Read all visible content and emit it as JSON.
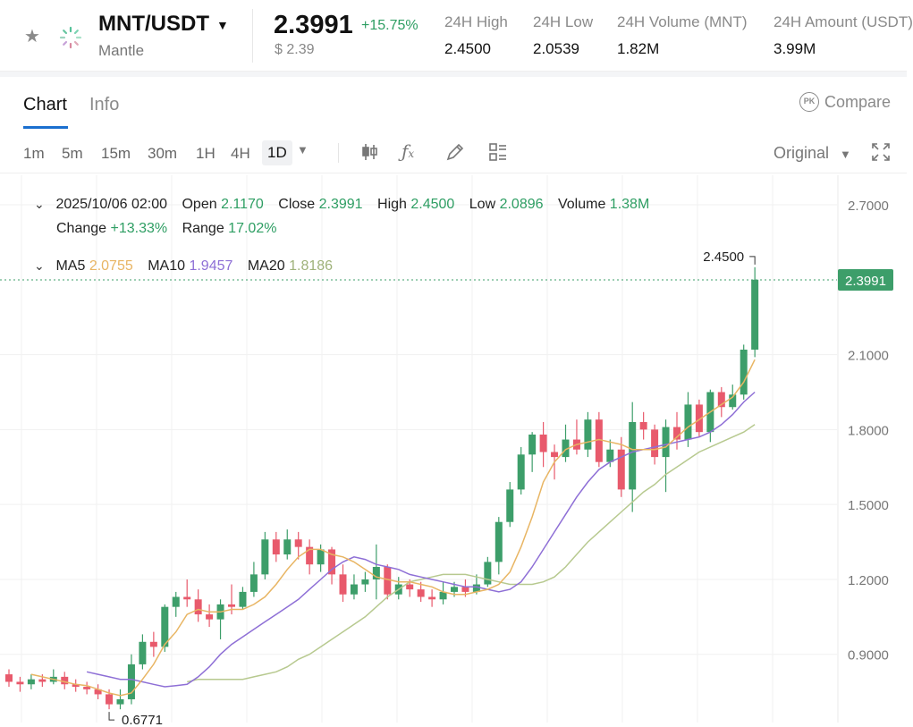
{
  "ticker": {
    "symbol": "MNT/USDT",
    "name": "Mantle",
    "price": "2.3991",
    "change": "+15.75%",
    "usd_price": "$ 2.39",
    "stats": [
      {
        "label": "24H High",
        "value": "2.4500"
      },
      {
        "label": "24H Low",
        "value": "2.0539"
      },
      {
        "label": "24H Volume (MNT)",
        "value": "1.82M"
      },
      {
        "label": "24H Amount (USDT)",
        "value": "3.99M"
      }
    ]
  },
  "tabs": {
    "chart": "Chart",
    "info": "Info",
    "compare": "Compare",
    "compare_badge": "PK"
  },
  "toolbar": {
    "intervals": [
      "1m",
      "5m",
      "15m",
      "30m",
      "1H",
      "4H",
      "1D"
    ],
    "active_interval": "1D",
    "original": "Original"
  },
  "legend": {
    "date": "2025/10/06 02:00",
    "open_label": "Open",
    "open": "2.1170",
    "close_label": "Close",
    "close": "2.3991",
    "high_label": "High",
    "high": "2.4500",
    "low_label": "Low",
    "low": "2.0896",
    "volume_label": "Volume",
    "volume": "1.38M",
    "change_label": "Change",
    "change": "+13.33%",
    "range_label": "Range",
    "range": "17.02%",
    "ma5_label": "MA5",
    "ma5": "2.0755",
    "ma10_label": "MA10",
    "ma10": "1.9457",
    "ma20_label": "MA20",
    "ma20": "1.8186"
  },
  "colors": {
    "up": "#3d9e6a",
    "down": "#e85a6c",
    "ma5": "#e8b563",
    "ma10": "#8e6fd6",
    "ma20": "#b7c98f",
    "price_line": "#3d9e6a"
  },
  "chart_data": {
    "type": "candlestick",
    "y_ticks": [
      "2.7000",
      "2.1000",
      "1.8000",
      "1.5000",
      "1.2000",
      "0.9000"
    ],
    "ylim": [
      0.6,
      2.75
    ],
    "current_price": "2.3991",
    "max_label": "2.4500",
    "min_label": "0.6771",
    "candles": [
      [
        0.82,
        0.79,
        0.84,
        0.77
      ],
      [
        0.79,
        0.78,
        0.81,
        0.75
      ],
      [
        0.78,
        0.8,
        0.82,
        0.76
      ],
      [
        0.8,
        0.79,
        0.82,
        0.77
      ],
      [
        0.79,
        0.81,
        0.84,
        0.78
      ],
      [
        0.81,
        0.78,
        0.83,
        0.76
      ],
      [
        0.78,
        0.77,
        0.8,
        0.75
      ],
      [
        0.77,
        0.76,
        0.79,
        0.74
      ],
      [
        0.76,
        0.74,
        0.78,
        0.72
      ],
      [
        0.74,
        0.7,
        0.76,
        0.68
      ],
      [
        0.7,
        0.72,
        0.76,
        0.68
      ],
      [
        0.72,
        0.86,
        0.9,
        0.7
      ],
      [
        0.86,
        0.95,
        0.98,
        0.84
      ],
      [
        0.95,
        0.93,
        0.99,
        0.89
      ],
      [
        0.93,
        1.09,
        1.1,
        0.91
      ],
      [
        1.09,
        1.13,
        1.15,
        1.05
      ],
      [
        1.13,
        1.12,
        1.2,
        1.09
      ],
      [
        1.12,
        1.06,
        1.16,
        1.03
      ],
      [
        1.06,
        1.04,
        1.1,
        1.01
      ],
      [
        1.04,
        1.1,
        1.12,
        0.96
      ],
      [
        1.1,
        1.09,
        1.18,
        1.06
      ],
      [
        1.09,
        1.15,
        1.17,
        1.08
      ],
      [
        1.15,
        1.22,
        1.27,
        1.13
      ],
      [
        1.22,
        1.36,
        1.39,
        1.2
      ],
      [
        1.36,
        1.3,
        1.39,
        1.27
      ],
      [
        1.3,
        1.36,
        1.4,
        1.28
      ],
      [
        1.36,
        1.33,
        1.39,
        1.28
      ],
      [
        1.33,
        1.26,
        1.36,
        1.22
      ],
      [
        1.26,
        1.32,
        1.34,
        1.23
      ],
      [
        1.32,
        1.22,
        1.33,
        1.18
      ],
      [
        1.22,
        1.14,
        1.26,
        1.11
      ],
      [
        1.14,
        1.18,
        1.22,
        1.12
      ],
      [
        1.18,
        1.2,
        1.23,
        1.15
      ],
      [
        1.2,
        1.25,
        1.34,
        1.12
      ],
      [
        1.25,
        1.14,
        1.26,
        1.12
      ],
      [
        1.14,
        1.18,
        1.21,
        1.12
      ],
      [
        1.18,
        1.16,
        1.2,
        1.13
      ],
      [
        1.16,
        1.13,
        1.19,
        1.11
      ],
      [
        1.13,
        1.12,
        1.16,
        1.09
      ],
      [
        1.12,
        1.15,
        1.19,
        1.1
      ],
      [
        1.15,
        1.17,
        1.19,
        1.13
      ],
      [
        1.17,
        1.15,
        1.2,
        1.13
      ],
      [
        1.15,
        1.18,
        1.22,
        1.14
      ],
      [
        1.18,
        1.27,
        1.29,
        1.17
      ],
      [
        1.27,
        1.43,
        1.45,
        1.22
      ],
      [
        1.43,
        1.56,
        1.59,
        1.41
      ],
      [
        1.56,
        1.7,
        1.73,
        1.54
      ],
      [
        1.7,
        1.78,
        1.79,
        1.63
      ],
      [
        1.78,
        1.71,
        1.83,
        1.65
      ],
      [
        1.71,
        1.69,
        1.74,
        1.6
      ],
      [
        1.69,
        1.76,
        1.82,
        1.67
      ],
      [
        1.76,
        1.72,
        1.84,
        1.7
      ],
      [
        1.72,
        1.84,
        1.87,
        1.69
      ],
      [
        1.84,
        1.67,
        1.87,
        1.65
      ],
      [
        1.67,
        1.72,
        1.76,
        1.65
      ],
      [
        1.72,
        1.56,
        1.77,
        1.53
      ],
      [
        1.56,
        1.83,
        1.91,
        1.47
      ],
      [
        1.83,
        1.8,
        1.87,
        1.76
      ],
      [
        1.8,
        1.69,
        1.82,
        1.66
      ],
      [
        1.69,
        1.81,
        1.84,
        1.55
      ],
      [
        1.81,
        1.76,
        1.87,
        1.72
      ],
      [
        1.76,
        1.9,
        1.95,
        1.73
      ],
      [
        1.9,
        1.79,
        1.92,
        1.77
      ],
      [
        1.79,
        1.95,
        1.96,
        1.75
      ],
      [
        1.95,
        1.89,
        1.97,
        1.85
      ],
      [
        1.89,
        1.94,
        1.98,
        1.88
      ],
      [
        1.94,
        2.12,
        2.14,
        1.92
      ],
      [
        2.12,
        2.4,
        2.45,
        2.09
      ]
    ],
    "ma5": [
      0.82,
      0.81,
      0.8,
      0.79,
      0.78,
      0.775,
      0.76,
      0.745,
      0.735,
      0.745,
      0.8,
      0.86,
      0.94,
      0.99,
      1.06,
      1.08,
      1.07,
      1.07,
      1.08,
      1.08,
      1.1,
      1.13,
      1.18,
      1.24,
      1.29,
      1.32,
      1.32,
      1.3,
      1.29,
      1.27,
      1.24,
      1.21,
      1.2,
      1.19,
      1.19,
      1.18,
      1.17,
      1.15,
      1.14,
      1.14,
      1.15,
      1.16,
      1.18,
      1.23,
      1.33,
      1.45,
      1.59,
      1.67,
      1.72,
      1.74,
      1.75,
      1.76,
      1.75,
      1.74,
      1.72,
      1.72,
      1.72,
      1.73,
      1.77,
      1.81,
      1.84,
      1.87,
      1.9,
      1.93,
      1.99,
      2.08
    ],
    "ma10": [
      0.83,
      0.82,
      0.81,
      0.8,
      0.8,
      0.79,
      0.78,
      0.77,
      0.775,
      0.78,
      0.81,
      0.85,
      0.9,
      0.94,
      0.97,
      1.0,
      1.03,
      1.06,
      1.09,
      1.12,
      1.16,
      1.2,
      1.24,
      1.27,
      1.29,
      1.28,
      1.26,
      1.25,
      1.24,
      1.22,
      1.21,
      1.2,
      1.19,
      1.18,
      1.17,
      1.17,
      1.16,
      1.15,
      1.16,
      1.19,
      1.25,
      1.32,
      1.39,
      1.46,
      1.53,
      1.59,
      1.64,
      1.67,
      1.69,
      1.71,
      1.72,
      1.73,
      1.74,
      1.75,
      1.76,
      1.77,
      1.79,
      1.82,
      1.86,
      1.91,
      1.95
    ],
    "ma20": [
      0.79,
      0.8,
      0.8,
      0.8,
      0.8,
      0.8,
      0.81,
      0.82,
      0.83,
      0.85,
      0.88,
      0.9,
      0.93,
      0.96,
      0.99,
      1.02,
      1.05,
      1.09,
      1.13,
      1.16,
      1.19,
      1.2,
      1.21,
      1.22,
      1.22,
      1.22,
      1.21,
      1.2,
      1.19,
      1.18,
      1.18,
      1.18,
      1.19,
      1.21,
      1.25,
      1.3,
      1.35,
      1.39,
      1.43,
      1.47,
      1.51,
      1.55,
      1.58,
      1.62,
      1.65,
      1.68,
      1.71,
      1.73,
      1.75,
      1.77,
      1.79,
      1.82
    ]
  }
}
